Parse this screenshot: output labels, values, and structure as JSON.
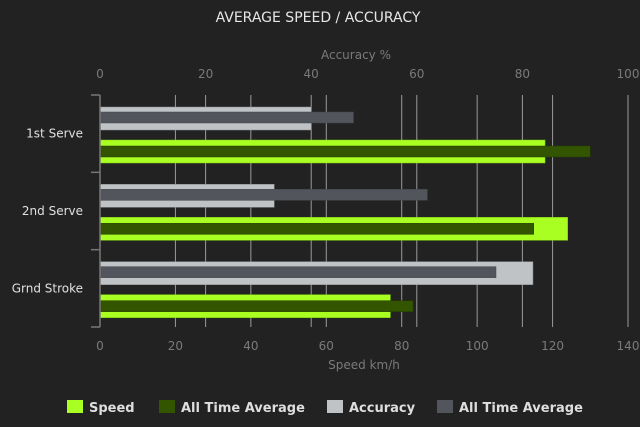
{
  "chart_data": {
    "type": "bar",
    "orientation": "horizontal",
    "title": "AVERAGE SPEED / ACCURACY",
    "categories": [
      "1st Serve",
      "2nd Serve",
      "Grnd Stroke"
    ],
    "speed_axis": {
      "label": "Speed km/h",
      "range": [
        0,
        140
      ],
      "ticks": [
        0,
        20,
        40,
        60,
        80,
        100,
        120,
        140
      ],
      "position": "bottom"
    },
    "accuracy_axis": {
      "label": "Accuracy %",
      "range": [
        0,
        100
      ],
      "ticks": [
        0,
        20,
        40,
        60,
        80,
        100
      ],
      "position": "top"
    },
    "grid": true,
    "legend_position": "bottom",
    "series": [
      {
        "name": "Speed",
        "axis": "speed",
        "color": "#aaff22",
        "values": [
          118,
          124,
          77
        ]
      },
      {
        "name": "All Time Average",
        "axis": "speed",
        "color": "#335500",
        "values": [
          130,
          115,
          83
        ]
      },
      {
        "name": "Accuracy",
        "axis": "accuracy",
        "color": "#bfc3c5",
        "values": [
          40,
          33,
          82
        ]
      },
      {
        "name": "All Time Average",
        "axis": "accuracy",
        "color": "#52565c",
        "values": [
          48,
          62,
          75
        ]
      }
    ]
  }
}
